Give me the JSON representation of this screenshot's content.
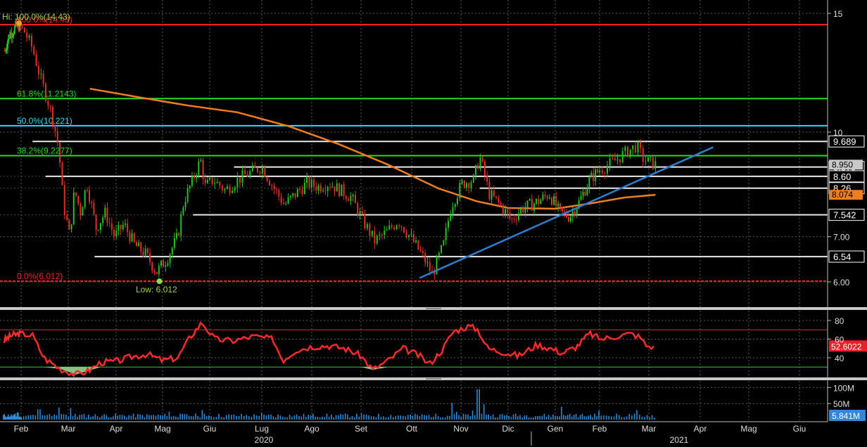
{
  "chart_data": [
    {
      "type": "candlestick",
      "panel": "price",
      "x_axis": {
        "months": [
          "Feb",
          "Mar",
          "Apr",
          "Mag",
          "Giu",
          "Lug",
          "Ago",
          "Set",
          "Ott",
          "Nov",
          "Dic",
          "Gen",
          "Feb",
          "Mar",
          "Apr",
          "Mag",
          "Giu"
        ],
        "years": [
          "2020",
          "2021"
        ]
      },
      "y_axis": {
        "scale": "log",
        "ylim": [
          5.5,
          16.0
        ],
        "ticks": [
          "15",
          "10",
          "7.00",
          "6.00"
        ]
      },
      "annotations": {
        "high_label": "Hi: 100.0%(14.43)",
        "low_label": "Low: 6.012"
      },
      "fibonacci": [
        {
          "label": "100.0%(14.43)",
          "value": 14.43,
          "color": "#ff2020"
        },
        {
          "label": "61.8%(11.2143)",
          "value": 11.2143,
          "color": "#22dd22"
        },
        {
          "label": "50.0%(10.221)",
          "value": 10.221,
          "color": "#33ddee"
        },
        {
          "label": "38.2%(9.2277)",
          "value": 9.2277,
          "color": "#22dd22"
        },
        {
          "label": "0.0%(6.012)",
          "value": 6.012,
          "color": "#ff2020"
        }
      ],
      "horizontal_levels": [
        {
          "label": "9.689",
          "value": 9.689,
          "from": "2020-02-22"
        },
        {
          "label": "8.879",
          "value": 8.879,
          "from": "2020-06-29"
        },
        {
          "label": "8.60",
          "value": 8.6,
          "from": "2020-03-01"
        },
        {
          "label": "8.26",
          "value": 8.26,
          "from": "2020-11-27"
        },
        {
          "label": "7.542",
          "value": 7.542,
          "from": "2020-06-04"
        },
        {
          "label": "6.54",
          "value": 6.54,
          "from": "2020-04-01"
        }
      ],
      "price_tags": [
        {
          "label": "8.950",
          "value": 8.95,
          "bg": "#c9c9c9",
          "fg": "#000000"
        },
        {
          "label": "8.074",
          "value": 8.074,
          "bg": "#f07d1e",
          "fg": "#000000"
        }
      ],
      "trendline": {
        "start": [
          "2020-10-20",
          6.08
        ],
        "end": [
          "2021-04-23",
          9.5
        ]
      },
      "moving_average": [
        [
          "2020-03-29",
          11.6
        ],
        [
          "2020-05-01",
          11.25
        ],
        [
          "2020-06-01",
          10.95
        ],
        [
          "2020-07-01",
          10.7
        ],
        [
          "2020-08-01",
          10.2
        ],
        [
          "2020-09-01",
          9.6
        ],
        [
          "2020-10-01",
          8.95
        ],
        [
          "2020-11-01",
          8.25
        ],
        [
          "2020-11-25",
          7.9
        ],
        [
          "2020-12-15",
          7.72
        ],
        [
          "2021-01-15",
          7.7
        ],
        [
          "2021-02-10",
          7.85
        ],
        [
          "2021-03-01",
          8.0
        ],
        [
          "2021-03-19",
          8.074
        ]
      ],
      "price_path": [
        [
          "2020-01-22",
          13.2
        ],
        [
          "2020-01-27",
          13.8
        ],
        [
          "2020-02-01",
          14.1
        ],
        [
          "2020-02-07",
          14.3
        ],
        [
          "2020-02-12",
          14.43
        ],
        [
          "2020-02-17",
          14.1
        ],
        [
          "2020-02-22",
          13.3
        ],
        [
          "2020-02-27",
          12.0
        ],
        [
          "2020-03-05",
          10.6
        ],
        [
          "2020-03-09",
          9.5
        ],
        [
          "2020-03-12",
          7.8
        ],
        [
          "2020-03-16",
          7.0
        ],
        [
          "2020-03-19",
          8.2
        ],
        [
          "2020-03-23",
          7.6
        ],
        [
          "2020-03-27",
          8.4
        ],
        [
          "2020-04-02",
          7.2
        ],
        [
          "2020-04-08",
          7.6
        ],
        [
          "2020-04-14",
          7.0
        ],
        [
          "2020-04-20",
          7.3
        ],
        [
          "2020-04-27",
          6.8
        ],
        [
          "2020-05-04",
          6.6
        ],
        [
          "2020-05-11",
          6.2
        ],
        [
          "2020-05-18",
          6.5
        ],
        [
          "2020-05-25",
          7.0
        ],
        [
          "2020-05-29",
          7.9
        ],
        [
          "2020-06-03",
          8.4
        ],
        [
          "2020-06-09",
          9.1
        ],
        [
          "2020-06-12",
          8.3
        ],
        [
          "2020-06-17",
          8.5
        ],
        [
          "2020-06-24",
          8.2
        ],
        [
          "2020-07-01",
          8.5
        ],
        [
          "2020-07-08",
          8.7
        ],
        [
          "2020-07-15",
          8.9
        ],
        [
          "2020-07-22",
          8.3
        ],
        [
          "2020-07-29",
          7.8
        ],
        [
          "2020-08-05",
          8.1
        ],
        [
          "2020-08-12",
          8.4
        ],
        [
          "2020-08-19",
          8.3
        ],
        [
          "2020-08-26",
          8.4
        ],
        [
          "2020-09-02",
          8.2
        ],
        [
          "2020-09-09",
          8.0
        ],
        [
          "2020-09-16",
          7.4
        ],
        [
          "2020-09-23",
          6.9
        ],
        [
          "2020-09-30",
          7.1
        ],
        [
          "2020-10-07",
          7.4
        ],
        [
          "2020-10-14",
          7.0
        ],
        [
          "2020-10-21",
          6.6
        ],
        [
          "2020-10-28",
          6.15
        ],
        [
          "2020-11-04",
          6.8
        ],
        [
          "2020-11-09",
          7.8
        ],
        [
          "2020-11-16",
          8.4
        ],
        [
          "2020-11-23",
          8.5
        ],
        [
          "2020-11-27",
          9.2
        ],
        [
          "2020-12-03",
          8.1
        ],
        [
          "2020-12-10",
          7.8
        ],
        [
          "2020-12-17",
          7.4
        ],
        [
          "2020-12-24",
          7.7
        ],
        [
          "2021-01-04",
          7.9
        ],
        [
          "2021-01-11",
          8.1
        ],
        [
          "2021-01-18",
          7.6
        ],
        [
          "2021-01-25",
          7.5
        ],
        [
          "2021-02-01",
          7.9
        ],
        [
          "2021-02-08",
          8.5
        ],
        [
          "2021-02-15",
          8.8
        ],
        [
          "2021-02-22",
          9.0
        ],
        [
          "2021-03-01",
          9.3
        ],
        [
          "2021-03-08",
          9.55
        ],
        [
          "2021-03-12",
          9.1
        ],
        [
          "2021-03-19",
          8.95
        ]
      ]
    },
    {
      "type": "line",
      "panel": "oscillator",
      "ylim": [
        20,
        90
      ],
      "ticks": [
        "80",
        "60",
        "40"
      ],
      "bands": [
        70,
        30
      ],
      "last_label": "52.6022",
      "color": "#ff2a2a",
      "points": [
        [
          "2020-01-20",
          58
        ],
        [
          "2020-02-01",
          64
        ],
        [
          "2020-02-14",
          66
        ],
        [
          "2020-02-22",
          64
        ],
        [
          "2020-02-29",
          40
        ],
        [
          "2020-03-10",
          28
        ],
        [
          "2020-03-20",
          22
        ],
        [
          "2020-03-28",
          26
        ],
        [
          "2020-04-05",
          35
        ],
        [
          "2020-04-15",
          36
        ],
        [
          "2020-04-25",
          41
        ],
        [
          "2020-05-05",
          44
        ],
        [
          "2020-05-15",
          37
        ],
        [
          "2020-05-25",
          40
        ],
        [
          "2020-06-02",
          62
        ],
        [
          "2020-06-10",
          78
        ],
        [
          "2020-06-18",
          60
        ],
        [
          "2020-06-28",
          58
        ],
        [
          "2020-07-10",
          63
        ],
        [
          "2020-07-22",
          60
        ],
        [
          "2020-07-28",
          37
        ],
        [
          "2020-08-05",
          48
        ],
        [
          "2020-08-15",
          52
        ],
        [
          "2020-08-25",
          53
        ],
        [
          "2020-09-05",
          50
        ],
        [
          "2020-09-15",
          42
        ],
        [
          "2020-09-22",
          27
        ],
        [
          "2020-10-01",
          37
        ],
        [
          "2020-10-10",
          50
        ],
        [
          "2020-10-20",
          42
        ],
        [
          "2020-10-26",
          33
        ],
        [
          "2020-11-03",
          48
        ],
        [
          "2020-11-10",
          68
        ],
        [
          "2020-11-20",
          74
        ],
        [
          "2020-11-26",
          70
        ],
        [
          "2020-12-02",
          50
        ],
        [
          "2020-12-12",
          46
        ],
        [
          "2020-12-22",
          42
        ],
        [
          "2021-01-03",
          54
        ],
        [
          "2021-01-12",
          50
        ],
        [
          "2021-01-20",
          45
        ],
        [
          "2021-01-30",
          52
        ],
        [
          "2021-02-08",
          66
        ],
        [
          "2021-02-16",
          60
        ],
        [
          "2021-02-24",
          63
        ],
        [
          "2021-03-05",
          66
        ],
        [
          "2021-03-10",
          62
        ],
        [
          "2021-03-14",
          52
        ],
        [
          "2021-03-19",
          52.6
        ]
      ]
    },
    {
      "type": "bar",
      "panel": "volume",
      "ylim": [
        0,
        110
      ],
      "ticks": [
        "100M",
        "50M"
      ],
      "last_label": "5.841M",
      "color": "#2e8ad8",
      "spikes": [
        [
          "2020-02-10",
          22
        ],
        [
          "2020-02-26",
          32
        ],
        [
          "2020-03-09",
          38
        ],
        [
          "2020-03-16",
          36
        ],
        [
          "2020-05-20",
          24
        ],
        [
          "2020-06-10",
          30
        ],
        [
          "2020-07-15",
          22
        ],
        [
          "2020-09-15",
          20
        ],
        [
          "2020-11-09",
          52
        ],
        [
          "2020-11-26",
          95
        ],
        [
          "2020-11-30",
          48
        ],
        [
          "2021-01-20",
          40
        ],
        [
          "2021-02-15",
          28
        ],
        [
          "2021-03-08",
          30
        ]
      ],
      "base_level": 14,
      "last_value": 5.841
    }
  ]
}
